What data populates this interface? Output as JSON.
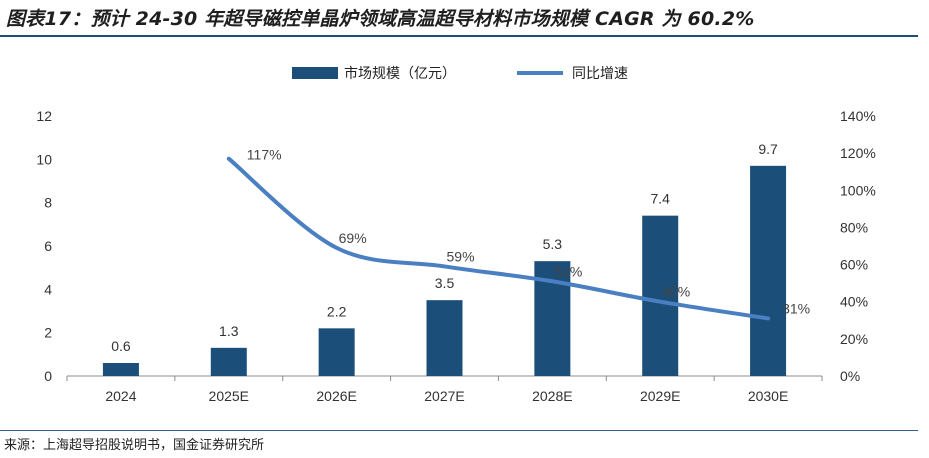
{
  "title": "图表17：预计 24-30 年超导磁控单晶炉领域高温超导材料市场规模 CAGR 为 60.2%",
  "source": "来源：上海超导招股说明书，国金证券研究所",
  "colors": {
    "bar": "#1b4f7a",
    "line": "#4a7fc1",
    "rule": "#1e4d78"
  },
  "chart_data": {
    "type": "bar",
    "categories": [
      "2024",
      "2025E",
      "2026E",
      "2027E",
      "2028E",
      "2029E",
      "2030E"
    ],
    "series": [
      {
        "name": "市场规模（亿元）",
        "type": "bar",
        "axis": "left",
        "values": [
          0.6,
          1.3,
          2.2,
          3.5,
          5.3,
          7.4,
          9.7
        ],
        "labels": [
          "0.6",
          "1.3",
          "2.2",
          "3.5",
          "5.3",
          "7.4",
          "9.7"
        ]
      },
      {
        "name": "同比增速",
        "type": "line",
        "axis": "right",
        "values": [
          null,
          117,
          69,
          59,
          51,
          40,
          31
        ],
        "labels": [
          "",
          "117%",
          "69%",
          "59%",
          "51%",
          "40%",
          "31%"
        ]
      }
    ],
    "y_left": {
      "min": 0,
      "max": 12,
      "ticks": [
        "0",
        "2",
        "4",
        "6",
        "8",
        "10",
        "12"
      ]
    },
    "y_right": {
      "min": 0,
      "max": 140,
      "ticks": [
        "0%",
        "20%",
        "40%",
        "60%",
        "80%",
        "100%",
        "120%",
        "140%"
      ]
    },
    "legend_position": "top-center",
    "grid": false
  }
}
